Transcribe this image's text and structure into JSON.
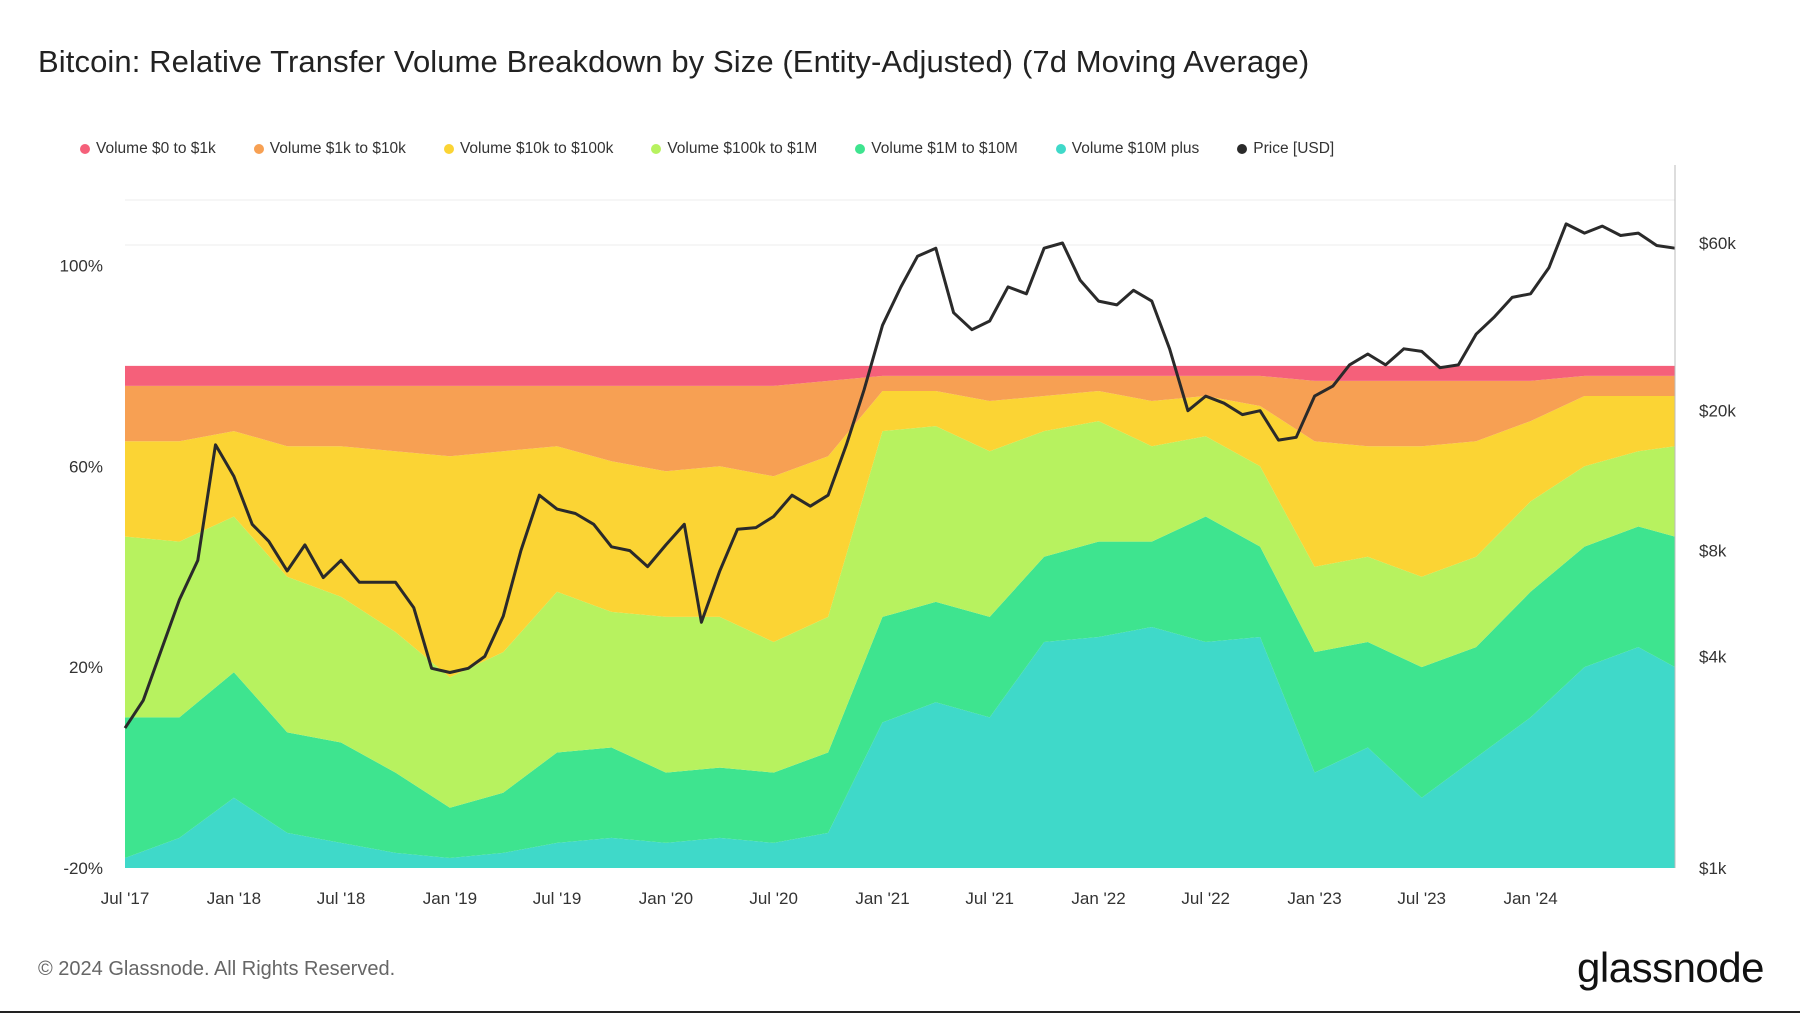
{
  "title": "Bitcoin: Relative Transfer Volume Breakdown by Size (Entity-Adjusted) (7d Moving Average)",
  "footer": "© 2024 Glassnode. All Rights Reserved.",
  "logo": "glassnode",
  "legend": [
    {
      "label": "Volume $0 to $1k",
      "color": "#f5607a"
    },
    {
      "label": "Volume $1k to $10k",
      "color": "#f7a053"
    },
    {
      "label": "Volume $10k to $100k",
      "color": "#fbd434"
    },
    {
      "label": "Volume $100k to $1M",
      "color": "#b7f25f"
    },
    {
      "label": "Volume $1M to $10M",
      "color": "#3ee48f"
    },
    {
      "label": "Volume $10M plus",
      "color": "#3fd9c9"
    },
    {
      "label": "Price [USD]",
      "color": "#2a2a2a"
    }
  ],
  "chart_data": {
    "type": "area",
    "stacked": true,
    "x": [
      "2017-07",
      "2017-10",
      "2018-01",
      "2018-04",
      "2018-07",
      "2018-10",
      "2019-01",
      "2019-04",
      "2019-07",
      "2019-10",
      "2020-01",
      "2020-04",
      "2020-07",
      "2020-10",
      "2021-01",
      "2021-04",
      "2021-07",
      "2021-10",
      "2022-01",
      "2022-04",
      "2022-07",
      "2022-10",
      "2023-01",
      "2023-04",
      "2023-07",
      "2023-10",
      "2024-01",
      "2024-04",
      "2024-07",
      "2024-09"
    ],
    "x_tick_labels": [
      "Jul '17",
      "Jan '18",
      "Jul '18",
      "Jan '19",
      "Jul '19",
      "Jan '20",
      "Jul '20",
      "Jan '21",
      "Jul '21",
      "Jan '22",
      "Jul '22",
      "Jan '23",
      "Jul '23",
      "Jan '24"
    ],
    "y_left_ticks": [
      "-20%",
      "20%",
      "60%",
      "100%"
    ],
    "y_right_ticks": [
      "$1k",
      "$4k",
      "$8k",
      "$20k",
      "$60k"
    ],
    "ylim": [
      -20,
      120
    ],
    "y2_scale": "log",
    "y2lim": [
      1000,
      100000
    ],
    "series": [
      {
        "name": "Volume $10M plus",
        "values": [
          2,
          6,
          14,
          7,
          5,
          3,
          2,
          3,
          5,
          6,
          5,
          6,
          5,
          7,
          29,
          33,
          30,
          45,
          46,
          48,
          45,
          46,
          19,
          24,
          14,
          22,
          30,
          40,
          44,
          40
        ]
      },
      {
        "name": "Volume $1M to $10M",
        "values": [
          28,
          24,
          25,
          20,
          20,
          16,
          10,
          12,
          18,
          18,
          14,
          14,
          14,
          16,
          21,
          20,
          20,
          17,
          19,
          17,
          25,
          18,
          24,
          21,
          26,
          22,
          25,
          24,
          24,
          26
        ]
      },
      {
        "name": "Volume $100k to $1M",
        "values": [
          36,
          35,
          31,
          31,
          29,
          28,
          26,
          28,
          32,
          27,
          31,
          30,
          26,
          27,
          37,
          35,
          33,
          25,
          24,
          19,
          16,
          16,
          17,
          17,
          18,
          18,
          18,
          16,
          15,
          18
        ]
      },
      {
        "name": "Volume $10k to $100k",
        "values": [
          19,
          20,
          17,
          26,
          30,
          36,
          44,
          40,
          29,
          30,
          29,
          30,
          33,
          32,
          8,
          7,
          10,
          7,
          6,
          9,
          8,
          12,
          25,
          22,
          26,
          23,
          16,
          14,
          11,
          10
        ]
      },
      {
        "name": "Volume $1k to $10k",
        "values": [
          11,
          11,
          9,
          12,
          12,
          13,
          14,
          13,
          12,
          15,
          17,
          16,
          18,
          15,
          3,
          3,
          5,
          4,
          3,
          5,
          4,
          6,
          12,
          13,
          13,
          12,
          8,
          4,
          4,
          4
        ]
      },
      {
        "name": "Volume $0 to $1k",
        "values": [
          4,
          4,
          4,
          4,
          4,
          4,
          4,
          4,
          4,
          4,
          4,
          4,
          4,
          3,
          2,
          2,
          2,
          2,
          2,
          2,
          2,
          2,
          3,
          3,
          3,
          3,
          3,
          2,
          2,
          2
        ]
      }
    ],
    "price_series": {
      "name": "Price [USD]",
      "x": [
        "2017-07",
        "2017-08",
        "2017-09",
        "2017-10",
        "2017-11",
        "2017-12",
        "2018-01",
        "2018-02",
        "2018-03",
        "2018-04",
        "2018-05",
        "2018-06",
        "2018-07",
        "2018-08",
        "2018-09",
        "2018-10",
        "2018-11",
        "2018-12",
        "2019-01",
        "2019-02",
        "2019-03",
        "2019-04",
        "2019-05",
        "2019-06",
        "2019-07",
        "2019-08",
        "2019-09",
        "2019-10",
        "2019-11",
        "2019-12",
        "2020-01",
        "2020-02",
        "2020-03",
        "2020-04",
        "2020-05",
        "2020-06",
        "2020-07",
        "2020-08",
        "2020-09",
        "2020-10",
        "2020-11",
        "2020-12",
        "2021-01",
        "2021-02",
        "2021-03",
        "2021-04",
        "2021-05",
        "2021-06",
        "2021-07",
        "2021-08",
        "2021-09",
        "2021-10",
        "2021-11",
        "2021-12",
        "2022-01",
        "2022-02",
        "2022-03",
        "2022-04",
        "2022-05",
        "2022-06",
        "2022-07",
        "2022-08",
        "2022-09",
        "2022-10",
        "2022-11",
        "2022-12",
        "2023-01",
        "2023-02",
        "2023-03",
        "2023-04",
        "2023-05",
        "2023-06",
        "2023-07",
        "2023-08",
        "2023-09",
        "2023-10",
        "2023-11",
        "2023-12",
        "2024-01",
        "2024-02",
        "2024-03",
        "2024-04",
        "2024-05",
        "2024-06",
        "2024-07",
        "2024-08",
        "2024-09"
      ],
      "values": [
        2500,
        3000,
        4200,
        5800,
        7500,
        16000,
        13000,
        9500,
        8500,
        7000,
        8300,
        6700,
        7500,
        6500,
        6500,
        6500,
        5500,
        3700,
        3600,
        3700,
        4000,
        5200,
        8000,
        11500,
        10500,
        10200,
        9500,
        8200,
        8000,
        7200,
        8300,
        9500,
        5000,
        7000,
        9200,
        9300,
        10000,
        11500,
        10700,
        11500,
        16000,
        23000,
        35000,
        45000,
        55000,
        58000,
        38000,
        34000,
        36000,
        45000,
        43000,
        58000,
        60000,
        47000,
        41000,
        40000,
        44000,
        41000,
        30000,
        20000,
        22000,
        21000,
        19500,
        20000,
        16500,
        16800,
        22000,
        23500,
        27000,
        29000,
        27000,
        30000,
        29500,
        26500,
        27000,
        33000,
        37000,
        42000,
        43000,
        51000,
        68000,
        64000,
        67000,
        63000,
        64000,
        59000,
        58000
      ]
    }
  }
}
